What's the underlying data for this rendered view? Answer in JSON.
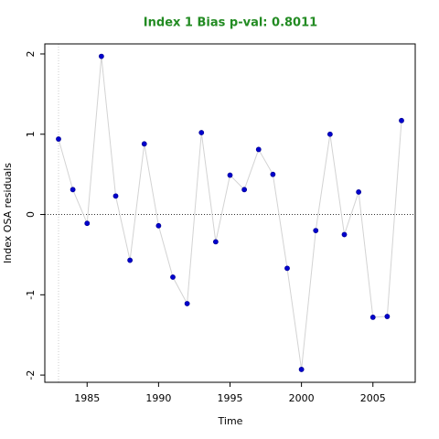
{
  "chart_data": {
    "type": "line",
    "title": "Index 1 Bias p-val: 0.8011",
    "title_color": "#228b22",
    "x_label": "Time",
    "y_label": "Index OSA residuals",
    "x": [
      1983,
      1984,
      1985,
      1986,
      1987,
      1988,
      1989,
      1990,
      1991,
      1992,
      1993,
      1994,
      1995,
      1996,
      1997,
      1998,
      1999,
      2000,
      2001,
      2002,
      2003,
      2004,
      2005,
      2006,
      2007
    ],
    "series": [
      {
        "color": "#0000cd",
        "line_color": "#d3d3d3",
        "values": [
          0.94,
          0.31,
          -0.11,
          1.97,
          0.23,
          -0.57,
          0.88,
          -0.14,
          -0.78,
          -1.11,
          1.02,
          -0.34,
          0.49,
          0.31,
          0.81,
          0.5,
          -0.67,
          -1.93,
          -0.2,
          1.0,
          -0.25,
          0.28,
          -1.28,
          -1.27,
          1.17
        ]
      }
    ],
    "xlim": [
      1982.04,
      2007.96
    ],
    "xticks": [
      1985,
      1990,
      1995,
      2000,
      2005
    ],
    "ylim": [
      -2.09,
      2.125
    ],
    "yticks": [
      -2,
      -1,
      0,
      1,
      2
    ],
    "vline": 1983,
    "hline": 0
  }
}
